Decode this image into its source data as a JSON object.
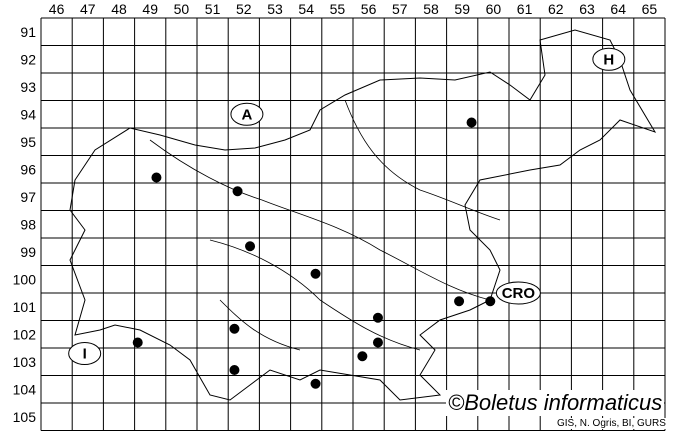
{
  "map": {
    "columns": [
      "46",
      "47",
      "48",
      "49",
      "50",
      "51",
      "52",
      "53",
      "54",
      "55",
      "56",
      "57",
      "58",
      "59",
      "60",
      "61",
      "62",
      "63",
      "64",
      "65"
    ],
    "rows": [
      "91",
      "92",
      "93",
      "94",
      "95",
      "96",
      "97",
      "98",
      "99",
      "100",
      "101",
      "102",
      "103",
      "104",
      "105"
    ],
    "region_labels": [
      {
        "text": "A",
        "col": 52.6,
        "row": 94.5
      },
      {
        "text": "H",
        "col": 64.2,
        "row": 92.5
      },
      {
        "text": "I",
        "col": 47.4,
        "row": 103.2
      },
      {
        "text": "CRO",
        "col": 61.3,
        "row": 101.0
      }
    ],
    "records": [
      {
        "col": 59.8,
        "row": 94.8
      },
      {
        "col": 49.7,
        "row": 96.8
      },
      {
        "col": 52.3,
        "row": 97.3
      },
      {
        "col": 52.7,
        "row": 99.3
      },
      {
        "col": 54.8,
        "row": 100.3
      },
      {
        "col": 59.4,
        "row": 101.3
      },
      {
        "col": 60.4,
        "row": 101.3
      },
      {
        "col": 56.8,
        "row": 101.9
      },
      {
        "col": 52.2,
        "row": 102.3
      },
      {
        "col": 49.1,
        "row": 102.8
      },
      {
        "col": 56.8,
        "row": 102.8
      },
      {
        "col": 56.3,
        "row": 103.3
      },
      {
        "col": 52.2,
        "row": 103.8
      },
      {
        "col": 54.8,
        "row": 104.3
      }
    ],
    "dot_color": "#000000",
    "line_color": "#000000"
  },
  "copyright": "©Boletus informaticus",
  "credits": "GIS, N. Ogris, BI, GURS"
}
